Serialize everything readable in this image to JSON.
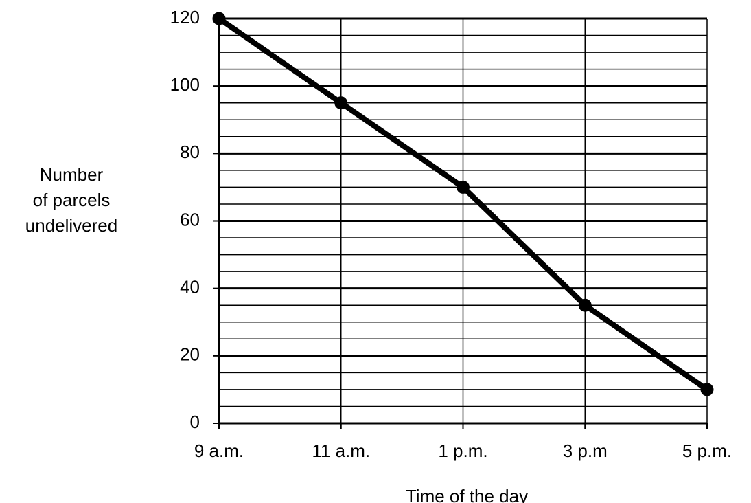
{
  "chart_data": {
    "type": "line",
    "xlabel": "Time of the day",
    "ylabel": [
      "Number",
      "of parcels",
      "undelivered"
    ],
    "categories": [
      "9 a.m.",
      "11 a.m.",
      "1 p.m.",
      "3 p.m",
      "5 p.m."
    ],
    "values": [
      120,
      95,
      70,
      35,
      10
    ],
    "color": "#000000",
    "ylim": [
      0,
      120
    ],
    "yticks": [
      0,
      20,
      40,
      60,
      80,
      100,
      120
    ],
    "minor_yticks": [
      5,
      10,
      15,
      25,
      30,
      35,
      45,
      50,
      55,
      65,
      70,
      75,
      85,
      90,
      95,
      105,
      110,
      115
    ],
    "grid": true
  }
}
